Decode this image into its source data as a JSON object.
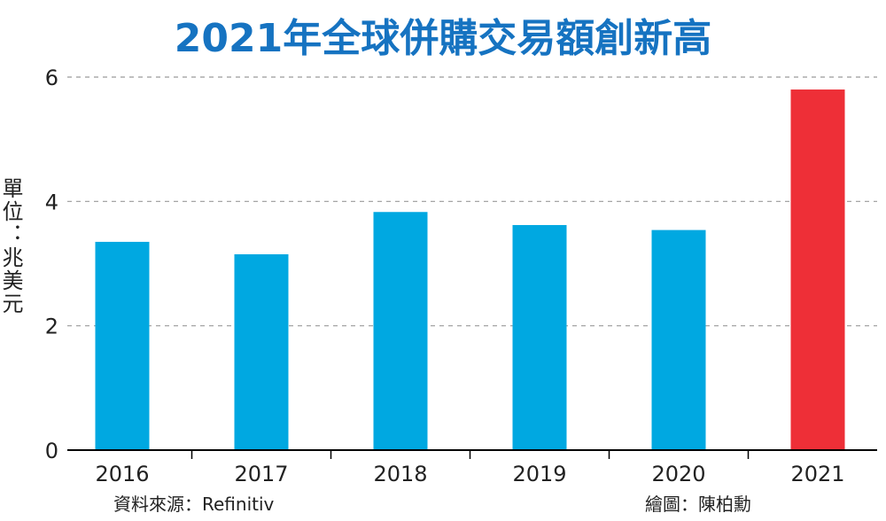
{
  "chart_data": {
    "type": "bar",
    "title": "2021年全球併購交易額創新高",
    "ylabel": "單位：兆美元",
    "xlabel": "",
    "categories": [
      "2016",
      "2017",
      "2018",
      "2019",
      "2020",
      "2021"
    ],
    "values": [
      3.35,
      3.15,
      3.83,
      3.62,
      3.54,
      5.8
    ],
    "ylim": [
      0,
      6
    ],
    "yticks": [
      "0",
      "2",
      "4",
      "6"
    ],
    "grid": true,
    "legend": "none",
    "colors": {
      "default": "#00a8e1",
      "highlight": "#ee2f37",
      "title": "#1673c1"
    },
    "highlight_index": 5
  },
  "footer": {
    "source": "資料來源：Refinitiv",
    "credit": "繪圖：陳柏勳"
  }
}
